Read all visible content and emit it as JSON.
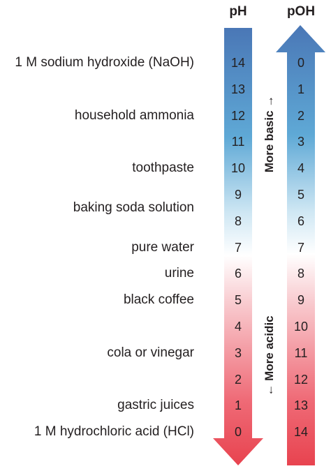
{
  "headers": {
    "ph": "pH",
    "poh": "pOH"
  },
  "scale": [
    {
      "ph": "14",
      "poh": "0"
    },
    {
      "ph": "13",
      "poh": "1"
    },
    {
      "ph": "12",
      "poh": "2"
    },
    {
      "ph": "11",
      "poh": "3"
    },
    {
      "ph": "10",
      "poh": "4"
    },
    {
      "ph": "9",
      "poh": "5"
    },
    {
      "ph": "8",
      "poh": "6"
    },
    {
      "ph": "7",
      "poh": "7"
    },
    {
      "ph": "6",
      "poh": "8"
    },
    {
      "ph": "5",
      "poh": "9"
    },
    {
      "ph": "4",
      "poh": "10"
    },
    {
      "ph": "3",
      "poh": "11"
    },
    {
      "ph": "2",
      "poh": "12"
    },
    {
      "ph": "1",
      "poh": "13"
    },
    {
      "ph": "0",
      "poh": "14"
    }
  ],
  "substances": [
    {
      "label": "1 M sodium hydroxide (NaOH)",
      "ph": 14
    },
    {
      "label": "household ammonia",
      "ph": 12
    },
    {
      "label": "toothpaste",
      "ph": 10
    },
    {
      "label": "baking soda solution",
      "ph": 8.5
    },
    {
      "label": "pure water",
      "ph": 7
    },
    {
      "label": "urine",
      "ph": 6
    },
    {
      "label": "black coffee",
      "ph": 5
    },
    {
      "label": "cola or vinegar",
      "ph": 3
    },
    {
      "label": "gastric juices",
      "ph": 1
    },
    {
      "label": "1 M hydrochloric acid (HCl)",
      "ph": 0
    }
  ],
  "direction_labels": {
    "basic": "More basic →",
    "acidic": "← More acidic"
  },
  "colors": {
    "basic": "#4a7ab8",
    "neutral": "#ffffff",
    "acidic": "#ea4a5a",
    "text": "#231f20"
  }
}
